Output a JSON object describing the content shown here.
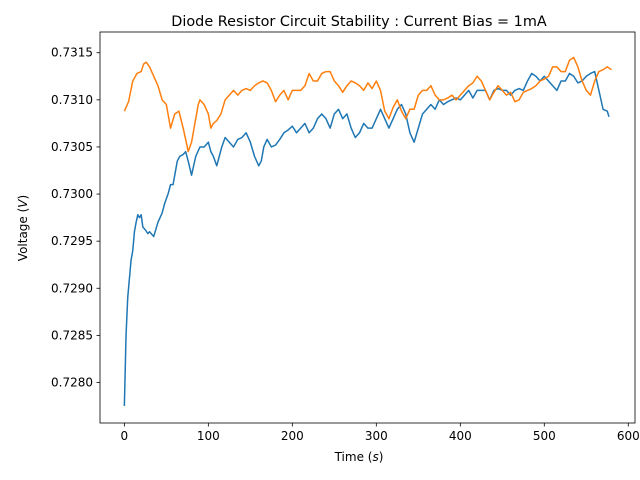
{
  "chart_data": {
    "type": "line",
    "title": "Diode Resistor Circuit Stability : Current Bias = 1mA",
    "xlabel": "Time (",
    "xlabel_italic": "s",
    "xlabel_end": ")",
    "ylabel": "Voltage (",
    "ylabel_italic": "V",
    "ylabel_end": ")",
    "xlim": [
      -29,
      608
    ],
    "ylim": [
      0.72757,
      0.73172
    ],
    "xticks": [
      0,
      100,
      200,
      300,
      400,
      500,
      600
    ],
    "yticks": [
      0.728,
      0.7285,
      0.729,
      0.7295,
      0.73,
      0.7305,
      0.731,
      0.7315
    ],
    "ytick_labels": [
      "0.7280",
      "0.7285",
      "0.7290",
      "0.7295",
      "0.7300",
      "0.7305",
      "0.7310",
      "0.7315"
    ],
    "grid": false,
    "legend": "none",
    "series": [
      {
        "color": "#1f77b4",
        "x": [
          0,
          2,
          4,
          6,
          8,
          10,
          12,
          14,
          16,
          18,
          20,
          22,
          25,
          28,
          30,
          35,
          40,
          45,
          48,
          52,
          55,
          58,
          60,
          63,
          66,
          70,
          73,
          76,
          80,
          85,
          90,
          95,
          100,
          103,
          106,
          110,
          113,
          116,
          120,
          125,
          130,
          135,
          140,
          145,
          150,
          155,
          160,
          163,
          166,
          170,
          175,
          180,
          185,
          190,
          195,
          200,
          205,
          210,
          215,
          220,
          225,
          230,
          235,
          240,
          245,
          250,
          255,
          260,
          265,
          270,
          275,
          280,
          285,
          290,
          295,
          300,
          305,
          310,
          315,
          320,
          325,
          330,
          335,
          340,
          345,
          350,
          355,
          360,
          365,
          370,
          375,
          380,
          385,
          390,
          395,
          400,
          405,
          410,
          415,
          420,
          425,
          430,
          435,
          440,
          445,
          450,
          455,
          460,
          465,
          470,
          475,
          480,
          485,
          490,
          495,
          500,
          505,
          510,
          515,
          520,
          525,
          530,
          535,
          540,
          545,
          550,
          555,
          560,
          565,
          570,
          575,
          577
        ],
        "y": [
          0.72775,
          0.7285,
          0.7289,
          0.7291,
          0.7293,
          0.7294,
          0.7296,
          0.7297,
          0.72978,
          0.72975,
          0.72978,
          0.72965,
          0.72962,
          0.72958,
          0.7296,
          0.72955,
          0.7297,
          0.7298,
          0.7299,
          0.73,
          0.7301,
          0.7301,
          0.7302,
          0.73035,
          0.7304,
          0.73042,
          0.73045,
          0.73035,
          0.7302,
          0.7304,
          0.7305,
          0.7305,
          0.73055,
          0.73045,
          0.7304,
          0.7303,
          0.7304,
          0.7305,
          0.7306,
          0.73055,
          0.7305,
          0.73058,
          0.7306,
          0.73065,
          0.73055,
          0.7304,
          0.7303,
          0.73035,
          0.7305,
          0.73058,
          0.7305,
          0.73052,
          0.73058,
          0.73065,
          0.73068,
          0.73072,
          0.73065,
          0.7307,
          0.73075,
          0.73065,
          0.7307,
          0.7308,
          0.73085,
          0.7308,
          0.7307,
          0.73085,
          0.7309,
          0.7308,
          0.73085,
          0.7307,
          0.7306,
          0.73065,
          0.73075,
          0.7307,
          0.7307,
          0.7308,
          0.7309,
          0.7308,
          0.7307,
          0.7308,
          0.7309,
          0.73095,
          0.73085,
          0.73065,
          0.73055,
          0.7307,
          0.73085,
          0.7309,
          0.73095,
          0.7309,
          0.731,
          0.73095,
          0.73098,
          0.731,
          0.73102,
          0.731,
          0.73105,
          0.7311,
          0.73102,
          0.7311,
          0.7311,
          0.7311,
          0.731,
          0.7311,
          0.73112,
          0.7311,
          0.7311,
          0.73105,
          0.7311,
          0.73112,
          0.7311,
          0.7312,
          0.73128,
          0.73125,
          0.7312,
          0.73125,
          0.7312,
          0.73115,
          0.7311,
          0.7312,
          0.7312,
          0.73128,
          0.73125,
          0.73118,
          0.7312,
          0.73125,
          0.73128,
          0.7313,
          0.7311,
          0.7309,
          0.73088,
          0.73082
        ]
      },
      {
        "color": "#ff7f0e",
        "x": [
          0,
          5,
          10,
          15,
          20,
          23,
          26,
          30,
          35,
          40,
          45,
          50,
          55,
          60,
          65,
          70,
          73,
          76,
          80,
          85,
          88,
          90,
          95,
          100,
          103,
          106,
          110,
          115,
          120,
          125,
          130,
          135,
          140,
          145,
          150,
          155,
          160,
          165,
          170,
          175,
          180,
          185,
          190,
          195,
          200,
          205,
          210,
          215,
          220,
          225,
          230,
          235,
          240,
          245,
          250,
          255,
          260,
          265,
          270,
          275,
          280,
          285,
          290,
          295,
          300,
          305,
          310,
          315,
          320,
          325,
          330,
          335,
          340,
          345,
          350,
          355,
          360,
          365,
          370,
          375,
          380,
          385,
          390,
          395,
          400,
          405,
          410,
          415,
          420,
          425,
          430,
          435,
          440,
          445,
          450,
          455,
          460,
          465,
          470,
          475,
          480,
          485,
          490,
          495,
          500,
          505,
          510,
          515,
          520,
          525,
          530,
          535,
          540,
          545,
          550,
          555,
          560,
          565,
          570,
          575,
          580
        ],
        "y": [
          0.73088,
          0.73098,
          0.7312,
          0.73128,
          0.7313,
          0.73138,
          0.7314,
          0.73135,
          0.73125,
          0.73115,
          0.731,
          0.73095,
          0.7307,
          0.73085,
          0.73088,
          0.7307,
          0.73058,
          0.73045,
          0.73055,
          0.7308,
          0.73095,
          0.731,
          0.73095,
          0.73085,
          0.7307,
          0.73075,
          0.73078,
          0.73085,
          0.731,
          0.73105,
          0.7311,
          0.73105,
          0.7311,
          0.73112,
          0.7311,
          0.73115,
          0.73118,
          0.7312,
          0.73118,
          0.7311,
          0.73098,
          0.73105,
          0.7311,
          0.731,
          0.7311,
          0.7311,
          0.7311,
          0.73115,
          0.73128,
          0.7312,
          0.7312,
          0.73128,
          0.7313,
          0.7313,
          0.7312,
          0.73115,
          0.73108,
          0.73115,
          0.7312,
          0.73118,
          0.73115,
          0.7311,
          0.73118,
          0.73112,
          0.7312,
          0.7311,
          0.73088,
          0.7308,
          0.73092,
          0.731,
          0.73088,
          0.7308,
          0.7309,
          0.7309,
          0.73105,
          0.7311,
          0.7311,
          0.73115,
          0.73105,
          0.731,
          0.731,
          0.73102,
          0.73105,
          0.731,
          0.73105,
          0.7311,
          0.73115,
          0.73118,
          0.73125,
          0.7312,
          0.7311,
          0.731,
          0.73108,
          0.73115,
          0.7311,
          0.73105,
          0.73108,
          0.73098,
          0.731,
          0.73108,
          0.7311,
          0.73112,
          0.73115,
          0.7312,
          0.73122,
          0.73125,
          0.73135,
          0.73135,
          0.7313,
          0.7313,
          0.73142,
          0.73145,
          0.73135,
          0.7312,
          0.7311,
          0.73105,
          0.7312,
          0.7313,
          0.73132,
          0.73135,
          0.73132
        ]
      }
    ]
  }
}
